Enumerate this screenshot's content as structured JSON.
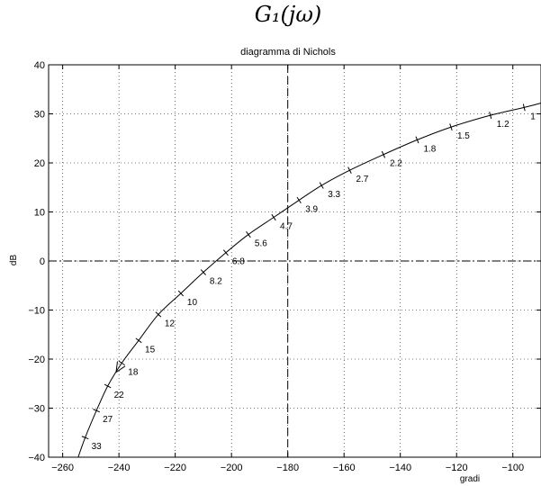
{
  "chart_data": {
    "type": "line",
    "title": "G₁(jω)",
    "subtitle": "diagramma di Nichols",
    "xlabel": "gradi",
    "ylabel": "dB",
    "xlim": [
      -265,
      -90
    ],
    "ylim": [
      -40,
      40
    ],
    "xticks": [
      -260,
      -240,
      -220,
      -200,
      -180,
      -160,
      -140,
      -120,
      -100
    ],
    "yticks": [
      -40,
      -30,
      -20,
      -10,
      0,
      10,
      20,
      30,
      40
    ],
    "grid": true,
    "reference_lines": {
      "phase": -180,
      "gain": 0
    },
    "series": [
      {
        "points": [
          {
            "phase": -90,
            "gain": 32.2
          },
          {
            "phase": -96,
            "gain": 31.3,
            "freq": "1"
          },
          {
            "phase": -108,
            "gain": 29.7,
            "freq": "1.2"
          },
          {
            "phase": -122,
            "gain": 27.3,
            "freq": "1.5"
          },
          {
            "phase": -134,
            "gain": 24.7,
            "freq": "1.8"
          },
          {
            "phase": -146,
            "gain": 21.7,
            "freq": "2.2"
          },
          {
            "phase": -158,
            "gain": 18.5,
            "freq": "2.7"
          },
          {
            "phase": -168,
            "gain": 15.4,
            "freq": "3.3"
          },
          {
            "phase": -176,
            "gain": 12.4,
            "freq": "3.9"
          },
          {
            "phase": -185,
            "gain": 8.9,
            "freq": "4.7"
          },
          {
            "phase": -194,
            "gain": 5.4,
            "freq": "5.6"
          },
          {
            "phase": -202,
            "gain": 1.7,
            "freq": "6.8"
          },
          {
            "phase": -210,
            "gain": -2.3,
            "freq": "8.2"
          },
          {
            "phase": -218,
            "gain": -6.6,
            "freq": "10"
          },
          {
            "phase": -226,
            "gain": -10.9,
            "freq": "12"
          },
          {
            "phase": -233,
            "gain": -16.2,
            "freq": "15"
          },
          {
            "phase": -239,
            "gain": -20.8,
            "freq": "18"
          },
          {
            "phase": -244,
            "gain": -25.5,
            "freq": "22"
          },
          {
            "phase": -248,
            "gain": -30.5,
            "freq": "27"
          },
          {
            "phase": -252,
            "gain": -36.0,
            "freq": "33"
          },
          {
            "phase": -254.5,
            "gain": -40
          }
        ],
        "arrow_at_phase": -241
      }
    ]
  }
}
